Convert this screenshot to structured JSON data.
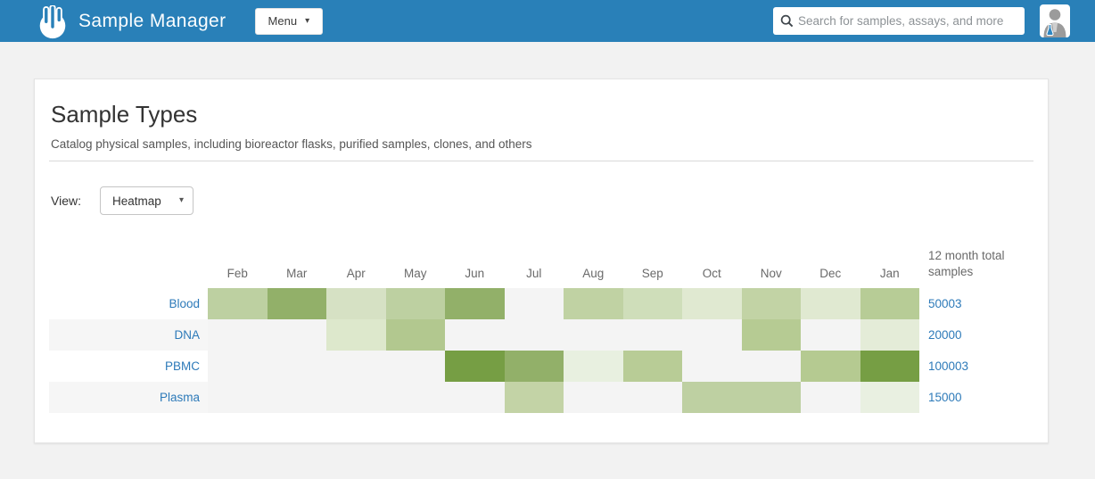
{
  "header": {
    "app_title": "Sample Manager",
    "menu_label": "Menu",
    "search_placeholder": "Search for samples, assays, and more"
  },
  "colors": {
    "header_bg": "#2980b8",
    "link": "#2d7ab9",
    "empty_cell": "#f4f4f4",
    "row_stripe": "#f6f6f6"
  },
  "page": {
    "title": "Sample Types",
    "subtitle": "Catalog physical samples, including bioreactor flasks, purified samples, clones, and others",
    "view_label": "View:",
    "view_selected": "Heatmap"
  },
  "chart_data": {
    "type": "heatmap",
    "columns": [
      "Feb",
      "Mar",
      "Apr",
      "May",
      "Jun",
      "Jul",
      "Aug",
      "Sep",
      "Oct",
      "Nov",
      "Dec",
      "Jan"
    ],
    "totals_header": "12 month total samples",
    "legend_note": "darker green = more samples; null = no samples that month",
    "rows": [
      {
        "label": "Blood",
        "total": "50003",
        "cells": [
          "#bdd0a1",
          "#92b069",
          "#d6e1c4",
          "#bdd0a1",
          "#92b069",
          null,
          "#c0d2a3",
          "#cfdeba",
          "#e0e9d1",
          "#c2d3a5",
          "#e0e9d1",
          "#b7cc96"
        ]
      },
      {
        "label": "DNA",
        "total": "20000",
        "cells": [
          null,
          null,
          "#dde8cc",
          "#b2c88f",
          null,
          null,
          null,
          null,
          null,
          "#b6cb93",
          null,
          "#e4ecd8"
        ]
      },
      {
        "label": "PBMC",
        "total": "100003",
        "cells": [
          null,
          null,
          null,
          null,
          "#769e44",
          "#92b069",
          "#e8f0e0",
          "#b8cc96",
          null,
          null,
          "#b5ca91",
          "#769e44"
        ]
      },
      {
        "label": "Plasma",
        "total": "15000",
        "cells": [
          null,
          null,
          null,
          null,
          null,
          "#c3d3a6",
          null,
          null,
          "#bed0a2",
          "#bed0a2",
          null,
          "#e9f0e1"
        ]
      }
    ]
  }
}
